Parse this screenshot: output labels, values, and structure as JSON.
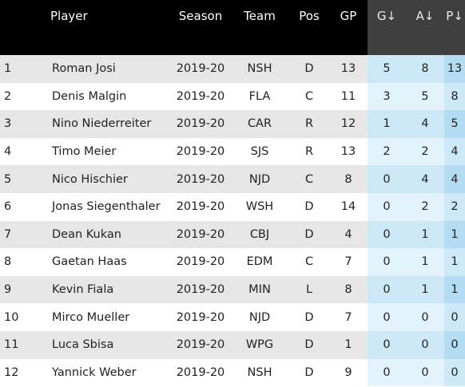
{
  "headers": {
    "rank": "",
    "player": "Player",
    "season": "Season",
    "team": "Team",
    "pos": "Pos",
    "gp": "GP",
    "g": "G↓",
    "a": "A↓",
    "p": "P↓"
  },
  "rows": [
    {
      "rank": "1",
      "player": "Roman Josi",
      "season": "2019-20",
      "team": "NSH",
      "pos": "D",
      "gp": "13",
      "g": "5",
      "a": "8",
      "p": "13"
    },
    {
      "rank": "2",
      "player": "Denis Malgin",
      "season": "2019-20",
      "team": "FLA",
      "pos": "C",
      "gp": "11",
      "g": "3",
      "a": "5",
      "p": "8"
    },
    {
      "rank": "3",
      "player": "Nino Niederreiter",
      "season": "2019-20",
      "team": "CAR",
      "pos": "R",
      "gp": "12",
      "g": "1",
      "a": "4",
      "p": "5"
    },
    {
      "rank": "4",
      "player": "Timo Meier",
      "season": "2019-20",
      "team": "SJS",
      "pos": "R",
      "gp": "13",
      "g": "2",
      "a": "2",
      "p": "4"
    },
    {
      "rank": "5",
      "player": "Nico Hischier",
      "season": "2019-20",
      "team": "NJD",
      "pos": "C",
      "gp": "8",
      "g": "0",
      "a": "4",
      "p": "4"
    },
    {
      "rank": "6",
      "player": "Jonas Siegenthaler",
      "season": "2019-20",
      "team": "WSH",
      "pos": "D",
      "gp": "14",
      "g": "0",
      "a": "2",
      "p": "2"
    },
    {
      "rank": "7",
      "player": "Dean Kukan",
      "season": "2019-20",
      "team": "CBJ",
      "pos": "D",
      "gp": "4",
      "g": "0",
      "a": "1",
      "p": "1"
    },
    {
      "rank": "8",
      "player": "Gaetan Haas",
      "season": "2019-20",
      "team": "EDM",
      "pos": "C",
      "gp": "7",
      "g": "0",
      "a": "1",
      "p": "1"
    },
    {
      "rank": "9",
      "player": "Kevin Fiala",
      "season": "2019-20",
      "team": "MIN",
      "pos": "L",
      "gp": "8",
      "g": "0",
      "a": "1",
      "p": "1"
    },
    {
      "rank": "10",
      "player": "Mirco Mueller",
      "season": "2019-20",
      "team": "NJD",
      "pos": "D",
      "gp": "7",
      "g": "0",
      "a": "0",
      "p": "0"
    },
    {
      "rank": "11",
      "player": "Luca Sbisa",
      "season": "2019-20",
      "team": "WPG",
      "pos": "D",
      "gp": "1",
      "g": "0",
      "a": "0",
      "p": "0"
    },
    {
      "rank": "12",
      "player": "Yannick Weber",
      "season": "2019-20",
      "team": "NSH",
      "pos": "D",
      "gp": "9",
      "g": "0",
      "a": "0",
      "p": "0"
    }
  ]
}
